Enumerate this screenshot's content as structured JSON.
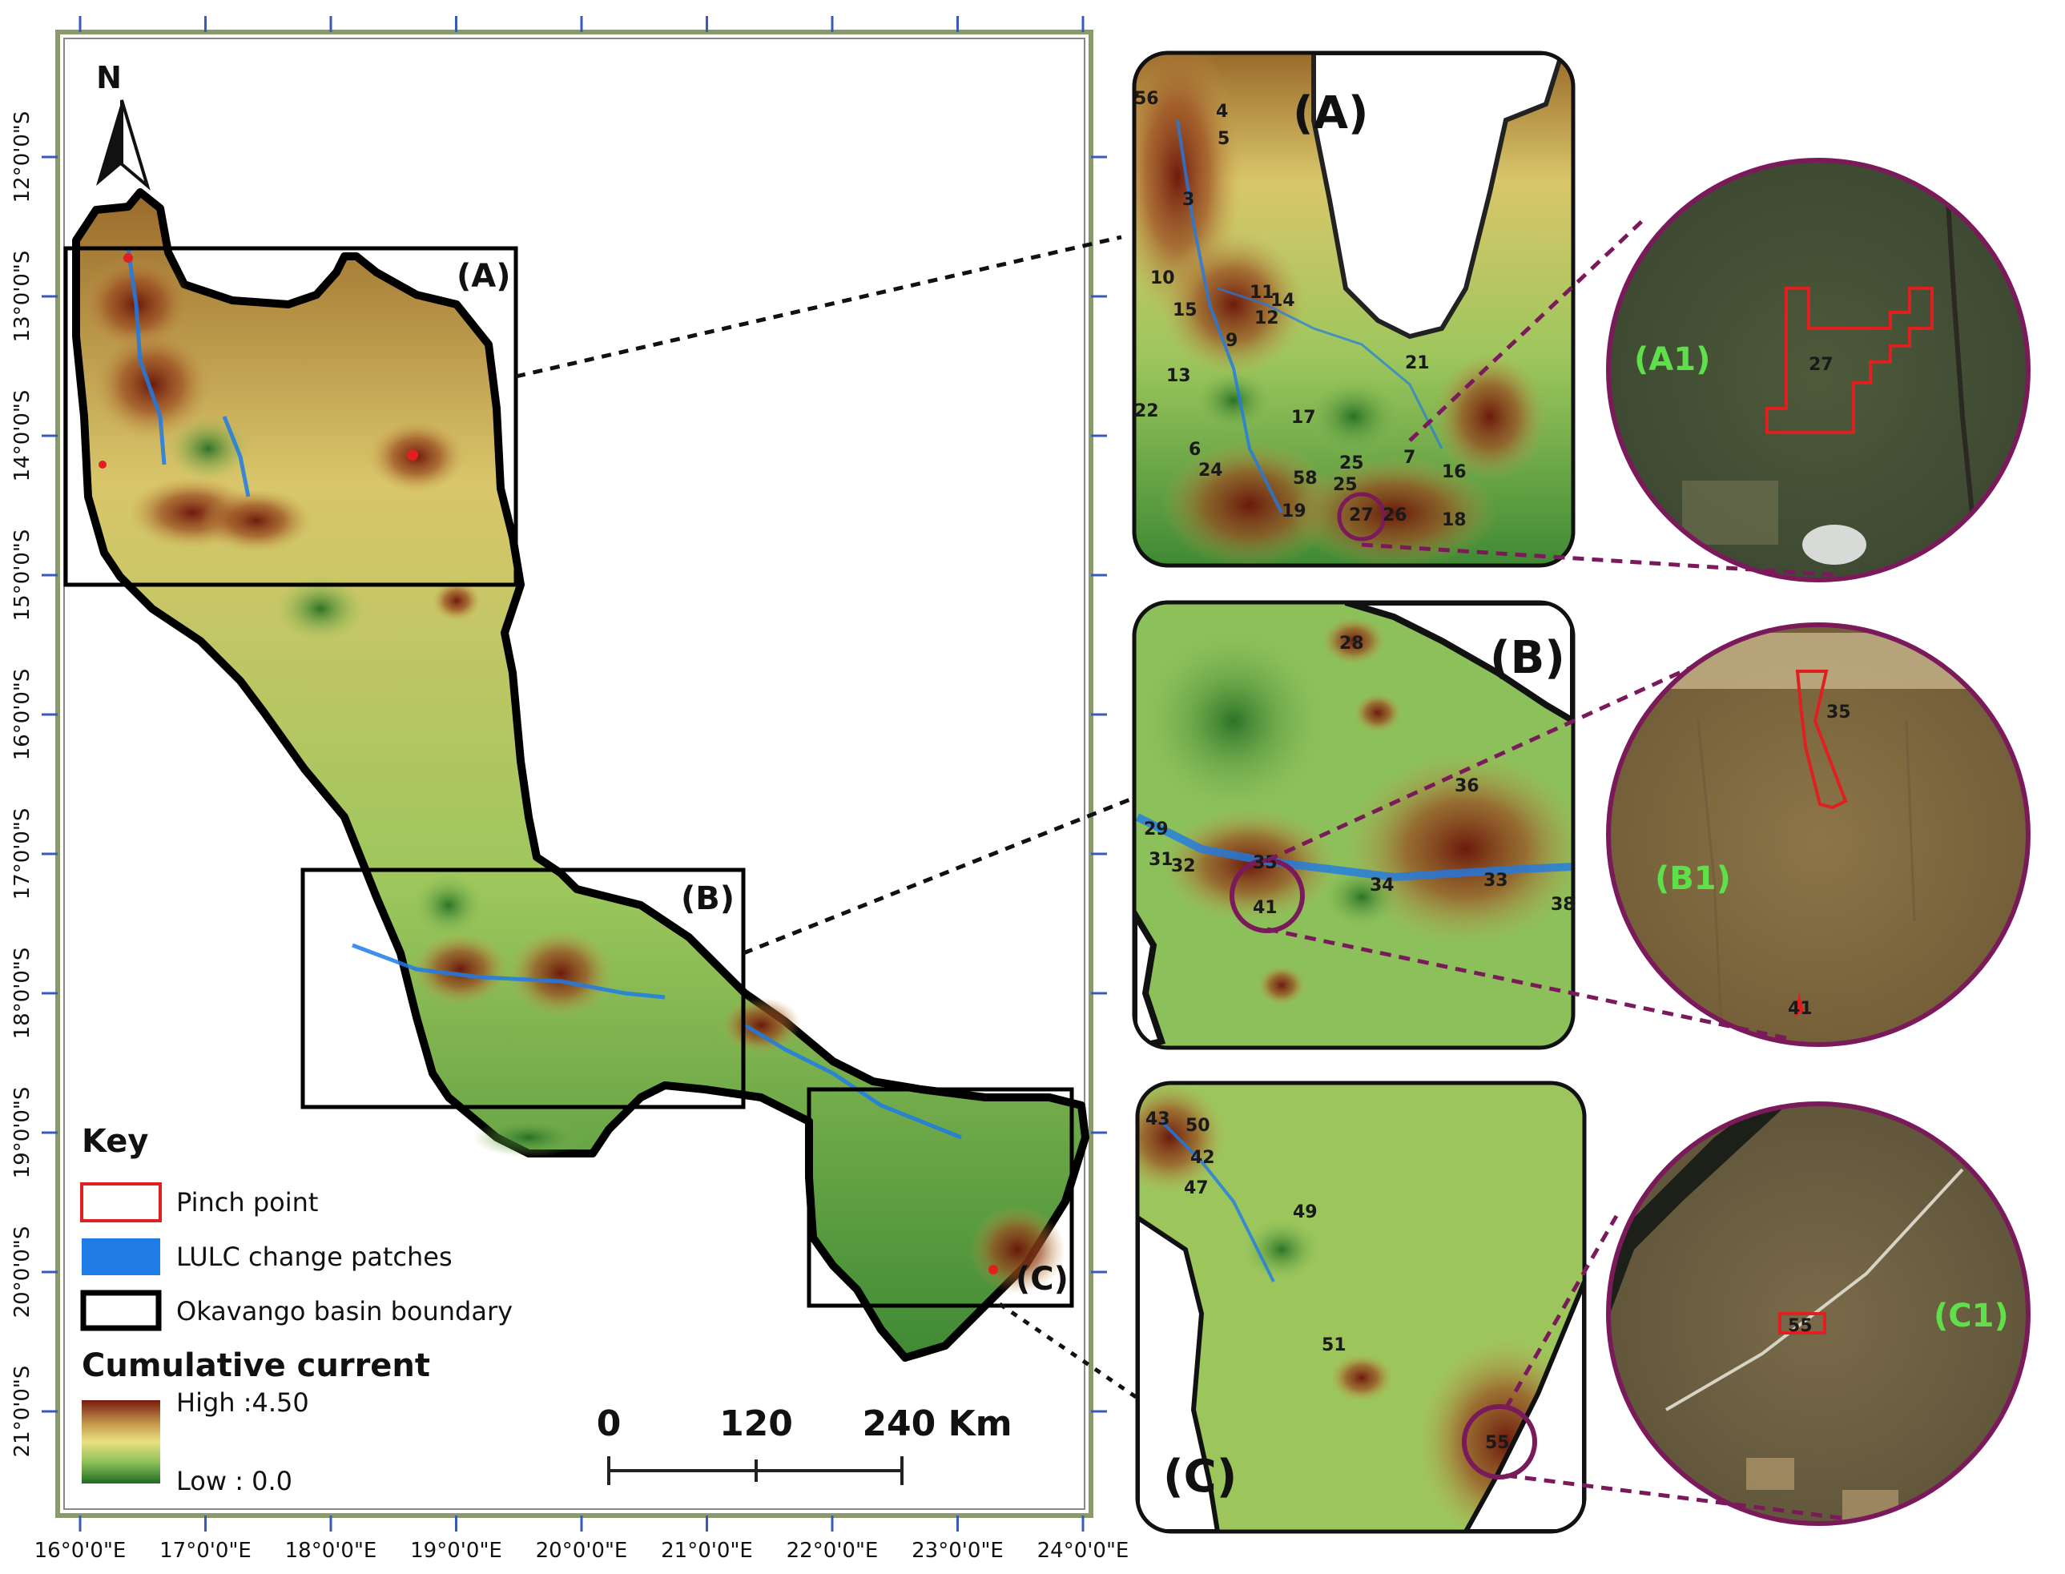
{
  "map": {
    "north_label": "N",
    "lon_ticks": [
      "16°0'0\"E",
      "17°0'0\"E",
      "18°0'0\"E",
      "19°0'0\"E",
      "20°0'0\"E",
      "21°0'0\"E",
      "22°0'0\"E",
      "23°0'0\"E",
      "24°0'0\"E"
    ],
    "lat_ticks": [
      "12°0'0\"S",
      "13°0'0\"S",
      "14°0'0\"S",
      "15°0'0\"S",
      "16°0'0\"S",
      "17°0'0\"S",
      "18°0'0\"S",
      "19°0'0\"S",
      "20°0'0\"S",
      "21°0'0\"S"
    ],
    "box_labels": [
      "(A)",
      "(B)",
      "(C)"
    ]
  },
  "legend": {
    "title": "Key",
    "items": [
      {
        "label": "Pinch point",
        "color": "#e02020"
      },
      {
        "label": "LULC change patches",
        "color": "#1f7be6"
      },
      {
        "label": "Okavango basin boundary",
        "color": "#000000"
      }
    ],
    "ramp_title": "Cumulative current",
    "ramp_high": "High :4.50",
    "ramp_low": "Low : 0.0",
    "ramp_colors": [
      "#7a1a10",
      "#c8a050",
      "#e8e080",
      "#8cc05a",
      "#1f6a22"
    ]
  },
  "scalebar": {
    "labels": [
      "0",
      "120",
      "240 Km"
    ]
  },
  "insets": [
    {
      "label": "(A)",
      "numbers": [
        "56",
        "4",
        "5",
        "3",
        "10",
        "11",
        "15",
        "12",
        "14",
        "9",
        "13",
        "21",
        "22",
        "17",
        "6",
        "24",
        "58",
        "25",
        "25",
        "7",
        "16",
        "19",
        "27",
        "26",
        "18"
      ]
    },
    {
      "label": "(B)",
      "numbers": [
        "28",
        "36",
        "29",
        "31",
        "32",
        "35",
        "34",
        "33",
        "38",
        "41"
      ]
    },
    {
      "label": "(C)",
      "numbers": [
        "43",
        "50",
        "42",
        "47",
        "49",
        "51",
        "55"
      ]
    }
  ],
  "zoom_circles": [
    {
      "label": "(A1)",
      "patch": "27"
    },
    {
      "label": "(B1)",
      "patches": [
        "35",
        "41"
      ]
    },
    {
      "label": "(C1)",
      "patch": "55"
    }
  ]
}
